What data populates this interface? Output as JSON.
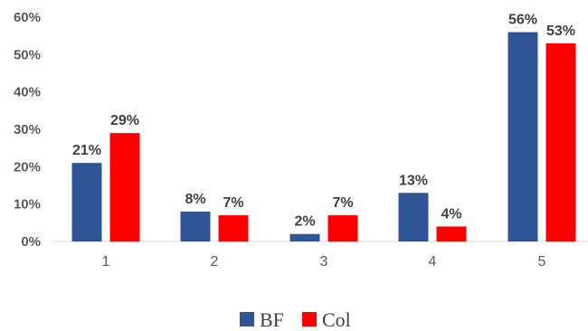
{
  "chart_data": {
    "type": "bar",
    "categories": [
      "1",
      "2",
      "3",
      "4",
      "5"
    ],
    "series": [
      {
        "name": "BF",
        "values": [
          21,
          8,
          2,
          13,
          56
        ],
        "labels": [
          "21%",
          "8%",
          "2%",
          "13%",
          "56%"
        ],
        "color": "#2F5597"
      },
      {
        "name": "Col",
        "values": [
          29,
          7,
          7,
          4,
          53
        ],
        "labels": [
          "29%",
          "7%",
          "7%",
          "4%",
          "53%"
        ],
        "color": "#FF0000"
      }
    ],
    "yticks": [
      "0%",
      "10%",
      "20%",
      "30%",
      "40%",
      "50%",
      "60%"
    ],
    "ylim": [
      0,
      60
    ],
    "title": "",
    "xlabel": "",
    "ylabel": "",
    "grid": false,
    "legend_position": "bottom"
  }
}
